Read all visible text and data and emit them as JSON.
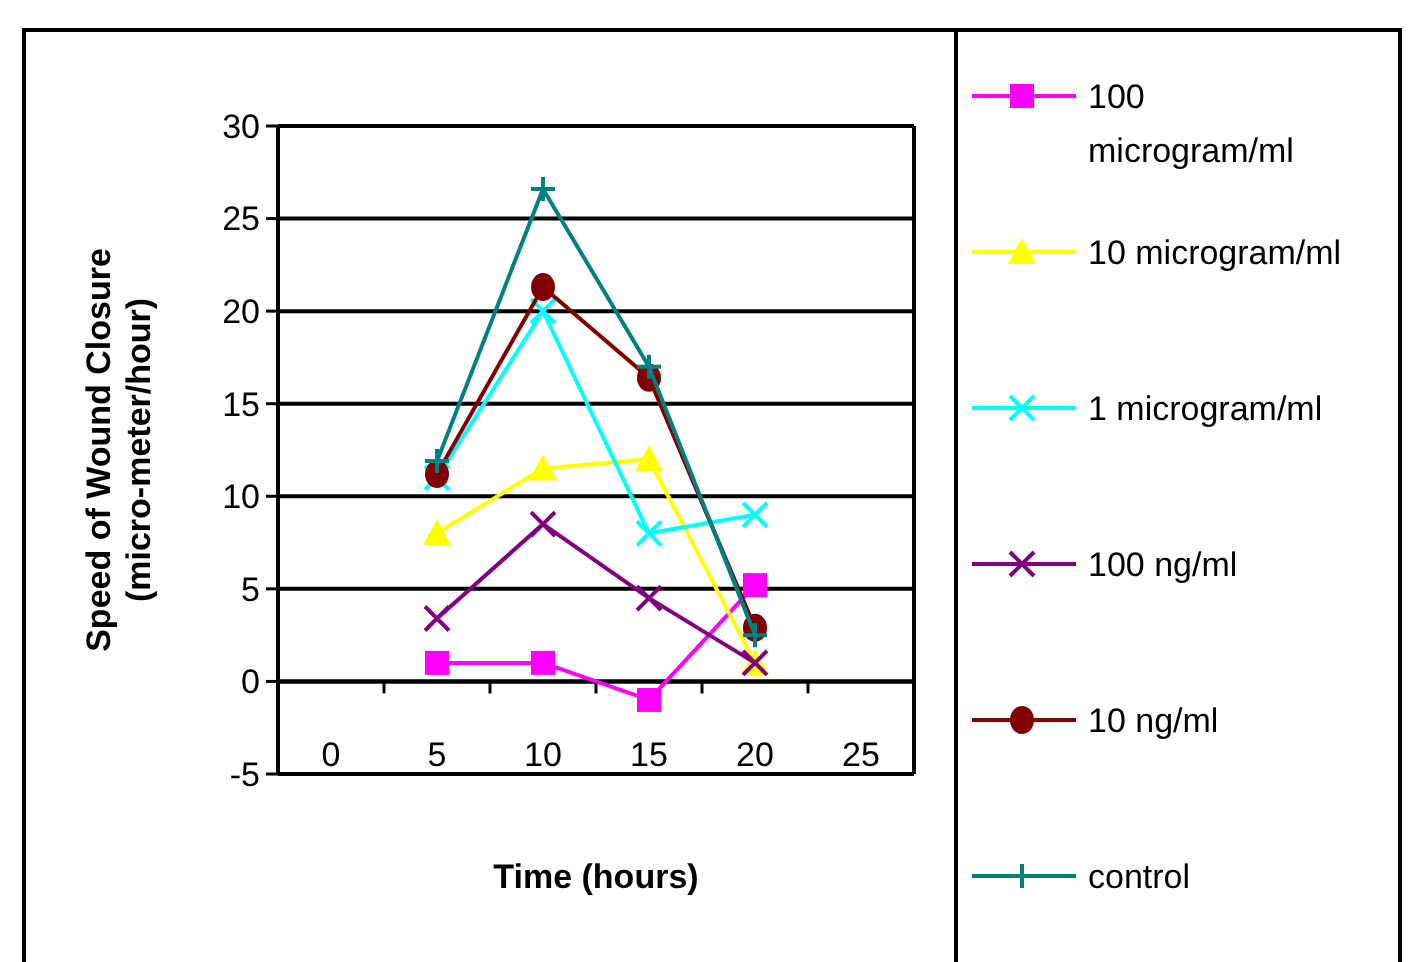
{
  "chart_data": {
    "type": "line",
    "xlabel": "Time (hours)",
    "ylabel": "Speed of Wound Closure\n(micro-meter/hour)",
    "categories": [
      "0",
      "5",
      "10",
      "15",
      "20",
      "25"
    ],
    "ylim": [
      -5,
      30
    ],
    "yticks": [
      -5,
      0,
      5,
      10,
      15,
      20,
      25,
      30
    ],
    "grid": "y",
    "legend": "right",
    "series": [
      {
        "name": "100 microgram/ml",
        "color": "#ff00ff",
        "marker": "square",
        "values": [
          null,
          1,
          1,
          -1,
          5.2,
          null
        ]
      },
      {
        "name": "10 microgram/ml",
        "color": "#ffff00",
        "marker": "triangle",
        "values": [
          null,
          8,
          11.5,
          12,
          1,
          null
        ]
      },
      {
        "name": "1 microgram/ml",
        "color": "#00ffff",
        "marker": "cross",
        "values": [
          null,
          11,
          20,
          8,
          9,
          null
        ]
      },
      {
        "name": "100 ng/ml",
        "color": "#800080",
        "marker": "cross",
        "values": [
          null,
          3.4,
          8.5,
          4.5,
          1,
          null
        ]
      },
      {
        "name": "10 ng/ml",
        "color": "#800000",
        "marker": "circle",
        "values": [
          null,
          11.2,
          21.3,
          16.4,
          2.9,
          null
        ]
      },
      {
        "name": "control",
        "color": "#008080",
        "marker": "plus",
        "values": [
          null,
          11.9,
          26.6,
          17,
          2.5,
          null
        ]
      }
    ]
  }
}
